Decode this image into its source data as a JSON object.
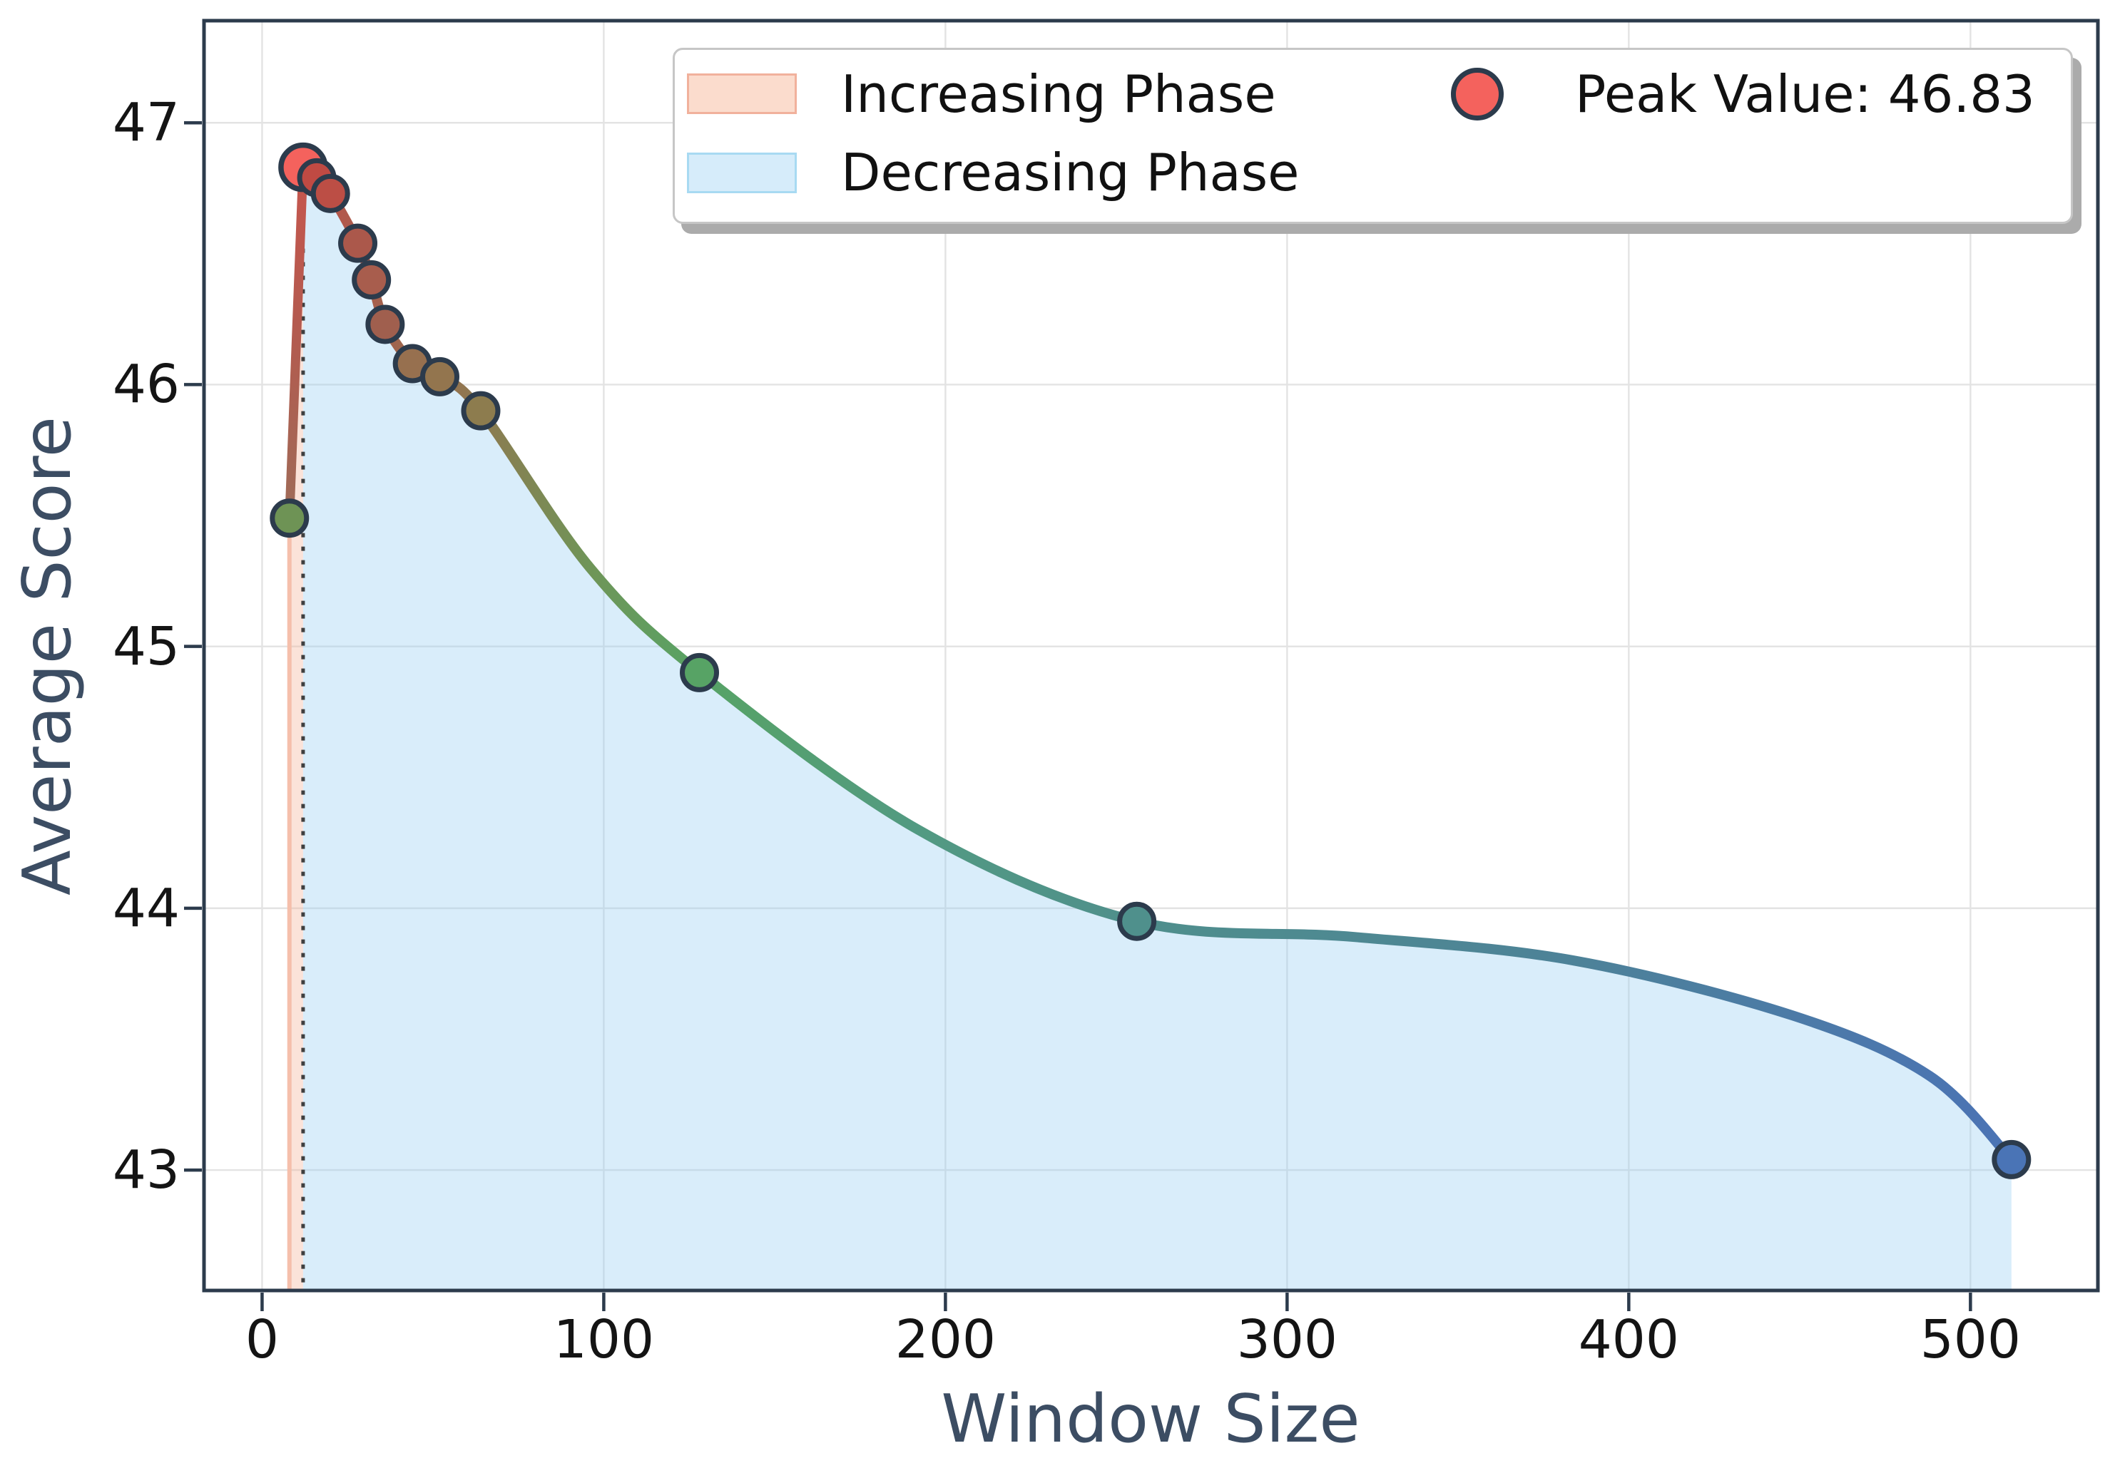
{
  "figure": {
    "background": "#ffffff"
  },
  "axes": {
    "xlabel": "Window Size",
    "ylabel": "Average Score",
    "x_tick_labels": [
      "0",
      "100",
      "200",
      "300",
      "400",
      "500"
    ],
    "x_tick_values": [
      0,
      100,
      200,
      300,
      400,
      500
    ],
    "y_tick_labels": [
      "47",
      "46",
      "45",
      "44",
      "43"
    ],
    "y_tick_values": [
      47,
      46,
      45,
      44,
      43
    ]
  },
  "legend": {
    "items": [
      {
        "label": "Increasing Phase",
        "type": "patch",
        "fill": "#fbdccd",
        "edge": "#f1b19c"
      },
      {
        "label": "Decreasing Phase",
        "type": "patch",
        "fill": "#d6ecfa",
        "edge": "#a8daf2"
      },
      {
        "label": "Peak Value: 46.83",
        "type": "marker",
        "fill": "#f4625d",
        "edge": "#2c3b4c"
      }
    ]
  },
  "chart_data": {
    "type": "line",
    "title": "",
    "xlabel": "Window Size",
    "ylabel": "Average Score",
    "x": [
      8,
      12,
      16,
      20,
      28,
      32,
      36,
      44,
      52,
      64,
      128,
      256,
      512
    ],
    "y": [
      45.49,
      46.83,
      46.79,
      46.73,
      46.54,
      46.4,
      46.23,
      46.08,
      46.03,
      45.9,
      44.9,
      43.95,
      43.04
    ],
    "peak": {
      "x": 12,
      "y": 46.83,
      "label": "Peak Value: 46.83"
    },
    "increasing_phase_x": [
      8,
      12
    ],
    "decreasing_phase_x": [
      12,
      512
    ],
    "xlim": [
      -17,
      537.3
    ],
    "ylim": [
      42.54,
      47.39
    ],
    "grid": true,
    "legend_position": "upper center",
    "curve_smoothing_anchors": [
      [
        96,
        45.3
      ],
      [
        192,
        44.3
      ],
      [
        320,
        43.89
      ],
      [
        384,
        43.8
      ],
      [
        448,
        43.59
      ],
      [
        488,
        43.36
      ]
    ],
    "point_colors": [
      "#6e9355",
      "#f4625d",
      "#c04a43",
      "#bc4e45",
      "#ab584b",
      "#a85d4d",
      "#a05f4e",
      "#97704f",
      "#93754e",
      "#8d7c4e",
      "#57a365",
      "#4f908c",
      "#4a74b6"
    ],
    "line_gradient": [
      [
        12,
        "#c0504a"
      ],
      [
        36,
        "#a2624d"
      ],
      [
        64,
        "#8d7a50"
      ],
      [
        96,
        "#6f9558"
      ],
      [
        128,
        "#57a365"
      ],
      [
        192,
        "#529a82"
      ],
      [
        256,
        "#4f8f8c"
      ],
      [
        384,
        "#4d8298"
      ],
      [
        512,
        "#4b73b5"
      ]
    ],
    "rising_gradient": [
      "#9f6c58",
      "#b25b4f",
      "#c6564e"
    ],
    "colors": {
      "increasing_fill": "rgba(244,175,146,0.35)",
      "increasing_edge": "#f5bfab",
      "decreasing_fill": "rgba(146,204,241,0.35)",
      "peak_vline": "#3f3f3f",
      "dot_edge": "#2c3b4c",
      "spine": "#2c3b4c",
      "grid": "#e3e3e3",
      "tick_label": "#141414",
      "axis_label": "#3c4d63"
    }
  }
}
